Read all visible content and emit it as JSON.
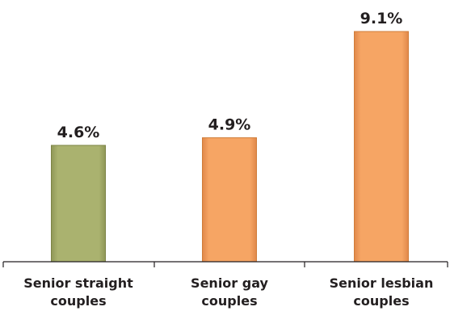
{
  "chart_data": {
    "type": "bar",
    "categories": [
      [
        "Senior straight",
        "couples"
      ],
      [
        "Senior gay",
        "couples"
      ],
      [
        "Senior lesbian",
        "couples"
      ]
    ],
    "values": [
      4.6,
      4.9,
      9.1
    ],
    "value_labels": [
      "4.6%",
      "4.9%",
      "9.1%"
    ],
    "bar_colors": [
      "#aab26f",
      "#f4a05e",
      "#f4a05e"
    ],
    "bar_edge_colors": [
      "#7d8447",
      "#d07d3a",
      "#d07d3a"
    ],
    "ylim": [
      0,
      10
    ],
    "grid": false,
    "legend": "none"
  }
}
